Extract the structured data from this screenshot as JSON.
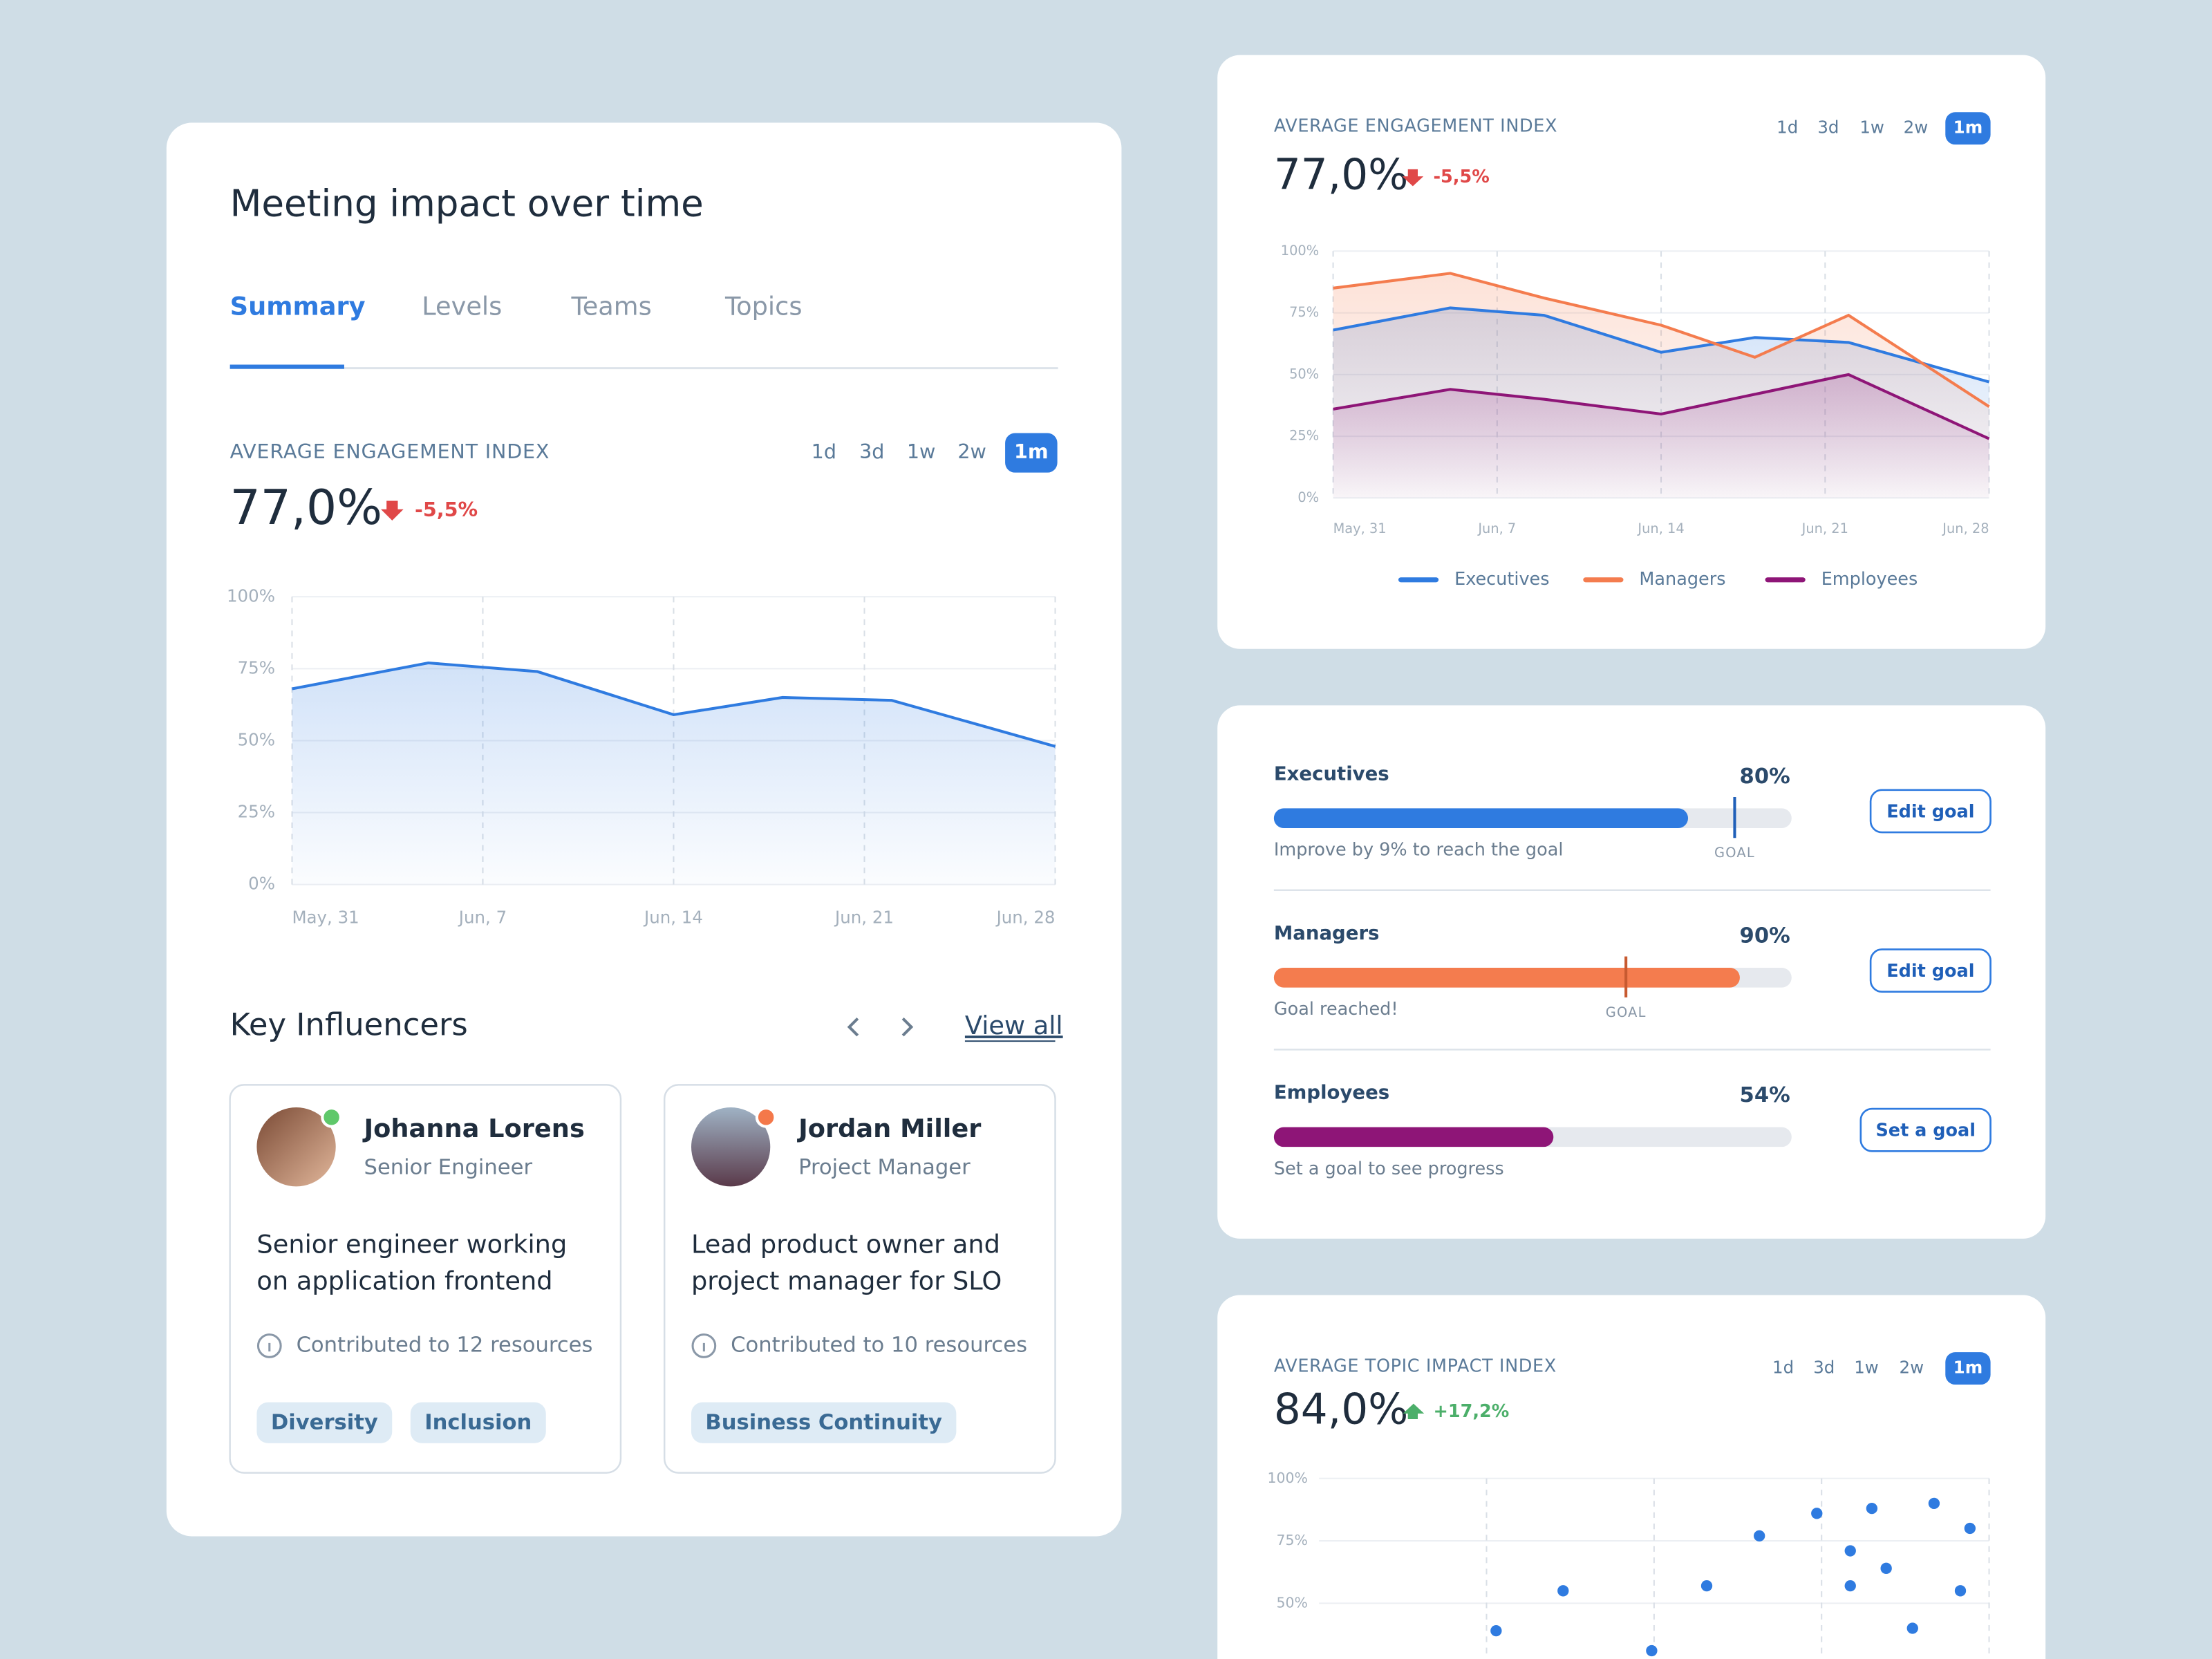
{
  "meeting_card": {
    "title": "Meeting impact over time",
    "tabs": [
      "Summary",
      "Levels",
      "Teams",
      "Topics"
    ],
    "engagement": {
      "label": "AVERAGE ENGAGEMENT INDEX",
      "ranges": [
        "1d",
        "3d",
        "1w",
        "2w",
        "1m"
      ],
      "value": "77,0%",
      "change": "-5,5%",
      "chart": {
        "type": "area",
        "x": [
          0,
          5,
          9,
          14,
          18,
          22,
          28
        ],
        "values": [
          68,
          77,
          74,
          59,
          65,
          64,
          48
        ],
        "color": "#2f7be0",
        "xlim": [
          0,
          28
        ],
        "xticks": [
          {
            "value": 0,
            "label": "May, 31"
          },
          {
            "value": 7,
            "label": "Jun, 7"
          },
          {
            "value": 14,
            "label": "Jun, 14"
          },
          {
            "value": 21,
            "label": "Jun, 21"
          },
          {
            "value": 28,
            "label": "Jun, 28"
          }
        ],
        "ylim": [
          0,
          100
        ],
        "yticks": [
          {
            "value": 0,
            "label": "0%"
          },
          {
            "value": 25,
            "label": "25%"
          },
          {
            "value": 50,
            "label": "50%"
          },
          {
            "value": 75,
            "label": "75%"
          },
          {
            "value": 100,
            "label": "100%"
          }
        ]
      }
    },
    "influencers": {
      "title": "Key Influencers",
      "view_all": "View all",
      "people": [
        {
          "name": "Johanna Lorens",
          "role": "Senior Engineer",
          "status_color": "#5fc86a",
          "description": [
            "Senior engineer working",
            "on application frontend"
          ],
          "contributions": "Contributed to 12 resources",
          "tags": [
            "Diversity",
            "Inclusion"
          ]
        },
        {
          "name": "Jordan Miller",
          "role": "Project Manager",
          "status_color": "#f4784a",
          "description": [
            "Lead product owner and",
            "project manager for SLO"
          ],
          "contributions": "Contributed to 10 resources",
          "tags": [
            "Business Continuity"
          ]
        }
      ]
    }
  },
  "engagement_card": {
    "label": "AVERAGE ENGAGEMENT INDEX",
    "ranges": [
      "1d",
      "3d",
      "1w",
      "2w",
      "1m"
    ],
    "value": "77,0%",
    "change": "-5,5%",
    "chart": {
      "type": "line",
      "x": [
        0,
        5,
        9,
        14,
        18,
        22,
        28
      ],
      "series": [
        {
          "name": "Executives",
          "color": "#2f7be0",
          "values": [
            68,
            77,
            74,
            59,
            65,
            63,
            47
          ]
        },
        {
          "name": "Managers",
          "color": "#f47c4e",
          "values": [
            85,
            91,
            81,
            70,
            57,
            74,
            37
          ]
        },
        {
          "name": "Employees",
          "color": "#8e1577",
          "values": [
            36,
            44,
            40,
            34,
            42,
            50,
            24
          ]
        }
      ],
      "xlim": [
        0,
        28
      ],
      "xticks": [
        {
          "value": 0,
          "label": "May, 31"
        },
        {
          "value": 7,
          "label": "Jun, 7"
        },
        {
          "value": 14,
          "label": "Jun, 14"
        },
        {
          "value": 21,
          "label": "Jun, 21"
        },
        {
          "value": 28,
          "label": "Jun, 28"
        }
      ],
      "ylim": [
        0,
        100
      ],
      "yticks": [
        {
          "value": 0,
          "label": "0%"
        },
        {
          "value": 25,
          "label": "25%"
        },
        {
          "value": 50,
          "label": "50%"
        },
        {
          "value": 75,
          "label": "75%"
        },
        {
          "value": 100,
          "label": "100%"
        }
      ]
    }
  },
  "goals_card": {
    "goal_label": "GOAL",
    "goals": [
      {
        "name": "Executives",
        "value": 80,
        "value_label": "80%",
        "goal": 89,
        "color": "#2f7be0",
        "note": "Improve by 9% to reach the goal",
        "button": "Edit goal"
      },
      {
        "name": "Managers",
        "value": 90,
        "value_label": "90%",
        "goal": 68,
        "color": "#f47c4e",
        "note": "Goal reached!",
        "button": "Edit goal"
      },
      {
        "name": "Employees",
        "value": 54,
        "value_label": "54%",
        "goal": null,
        "color": "#8e1577",
        "note": "Set a goal to see progress",
        "button": "Set a goal"
      }
    ]
  },
  "topic_card": {
    "label": "AVERAGE TOPIC IMPACT INDEX",
    "ranges": [
      "1d",
      "3d",
      "1w",
      "2w",
      "1m"
    ],
    "value": "84,0%",
    "change": "+17,2%",
    "chart": {
      "type": "scatter",
      "x": [
        7.4,
        10.2,
        13.9,
        16.2,
        18.4,
        20.8,
        22.2,
        22.2,
        23.1,
        23.7,
        24.8,
        25.7,
        26.8,
        27.2
      ],
      "values": [
        39,
        55,
        31,
        57,
        77,
        86,
        71,
        57,
        88,
        64,
        40,
        90,
        55,
        80
      ],
      "color": "#2f7be0",
      "xlim": [
        0,
        28
      ],
      "xticks": [
        7,
        14,
        21,
        28
      ],
      "ylim": [
        0,
        100
      ],
      "yticks": [
        {
          "value": 50,
          "label": "50%"
        },
        {
          "value": 75,
          "label": "75%"
        },
        {
          "value": 100,
          "label": "100%"
        }
      ]
    }
  }
}
